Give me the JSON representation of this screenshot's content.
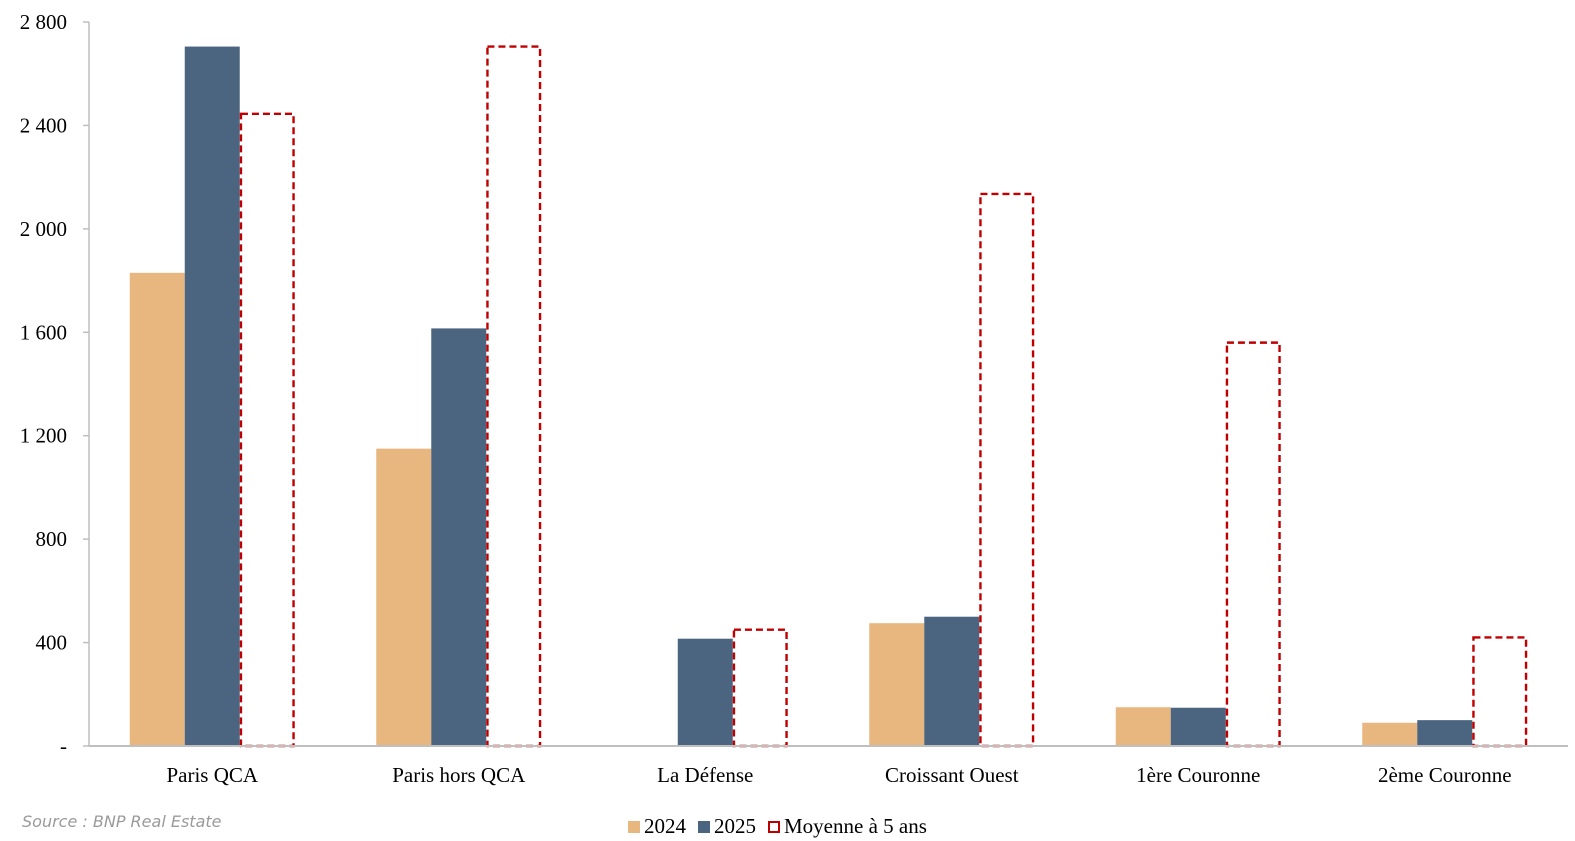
{
  "chart_data": {
    "type": "bar",
    "categories": [
      "Paris QCA",
      "Paris hors QCA",
      "La Défense",
      "Croissant Ouest",
      "1ère Couronne",
      "2ème Couronne"
    ],
    "series": [
      {
        "name": "2024",
        "values": [
          1830,
          1150,
          0,
          475,
          150,
          90
        ],
        "color": "#E8B780",
        "style": "solid"
      },
      {
        "name": "2025",
        "values": [
          2705,
          1615,
          415,
          500,
          148,
          100
        ],
        "color": "#4B6581",
        "style": "solid"
      },
      {
        "name": "Moyenne à 5 ans",
        "values": [
          2445,
          2705,
          450,
          2135,
          1560,
          420
        ],
        "color": "#C00000",
        "style": "dashed-outline"
      }
    ],
    "y_ticks": [
      "-",
      "400",
      "800",
      "1 200",
      "1 600",
      "2 000",
      "2 400",
      "2 800"
    ],
    "ylim": [
      0,
      2800
    ],
    "legend_position": "bottom",
    "grid": false
  },
  "source": "Source : BNP Real Estate"
}
